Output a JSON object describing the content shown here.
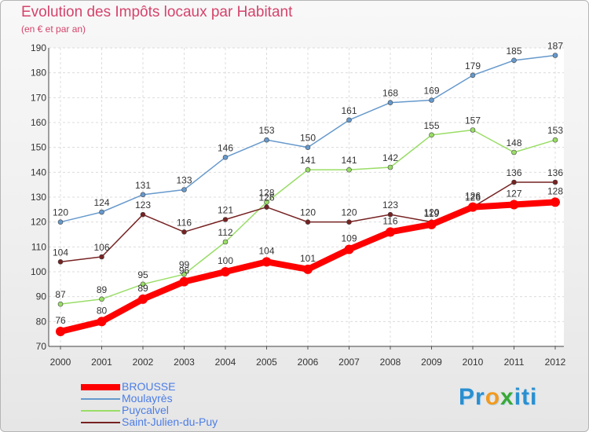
{
  "chart_data": {
    "type": "line",
    "title": "Evolution des Impôts locaux par Habitant",
    "subtitle": "(en € et par an)",
    "xlabel": "",
    "ylabel": "",
    "categories": [
      "2000",
      "2001",
      "2002",
      "2003",
      "2004",
      "2005",
      "2006",
      "2007",
      "2008",
      "2009",
      "2010",
      "2011",
      "2012"
    ],
    "ylim": [
      70,
      190
    ],
    "yticks": [
      70,
      80,
      90,
      100,
      110,
      120,
      130,
      140,
      150,
      160,
      170,
      180,
      190
    ],
    "grid": true,
    "legend_position": "bottom-left",
    "series": [
      {
        "name": "BROUSSE",
        "color": "#ff0000",
        "values": [
          76,
          80,
          89,
          96,
          100,
          104,
          101,
          109,
          116,
          119,
          126,
          127,
          128
        ]
      },
      {
        "name": "Moulayrès",
        "color": "#6699cc",
        "values": [
          120,
          124,
          131,
          133,
          146,
          153,
          150,
          161,
          168,
          169,
          179,
          185,
          187
        ]
      },
      {
        "name": "Puycalvel",
        "color": "#99dd66",
        "values": [
          87,
          89,
          95,
          99,
          112,
          128,
          141,
          141,
          142,
          155,
          157,
          148,
          153
        ]
      },
      {
        "name": "Saint-Julien-du-Puy",
        "color": "#772222",
        "values": [
          104,
          106,
          123,
          116,
          121,
          126,
          120,
          120,
          123,
          120,
          126,
          136,
          136
        ]
      }
    ]
  },
  "logo": {
    "text_p": "Pr",
    "text_o": "o",
    "text_x": "x",
    "text_end": "iti"
  }
}
